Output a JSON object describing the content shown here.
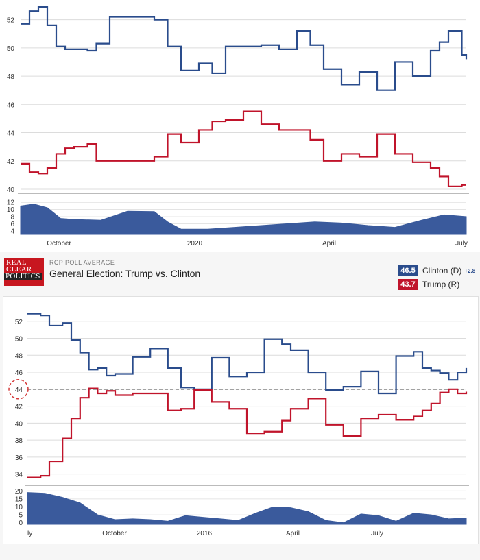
{
  "colors": {
    "clinton_or_dem": "#2a4c8c",
    "trump_or_rep": "#c0142b",
    "spread_fill": "#3a5a9c",
    "grid": "#dcdcdc"
  },
  "chart_data": [
    {
      "type": "line",
      "title": "",
      "x_ticks": [
        "October",
        "2020",
        "April",
        "July"
      ],
      "ylim": [
        40,
        53
      ],
      "y_ticks": [
        40,
        42,
        44,
        46,
        48,
        50,
        52
      ],
      "grid": true,
      "series": [
        {
          "name": "",
          "color": "#2a4c8c",
          "x": [
            0,
            2,
            4,
            6,
            8,
            10,
            12,
            15,
            17,
            20,
            25,
            30,
            33,
            36,
            40,
            43,
            46,
            50,
            54,
            58,
            62,
            65,
            68,
            72,
            76,
            80,
            84,
            88,
            92,
            94,
            96,
            99,
            100
          ],
          "y": [
            51.7,
            52.6,
            52.9,
            51.6,
            50.1,
            49.9,
            49.9,
            49.8,
            50.3,
            52.2,
            52.2,
            52.0,
            50.1,
            48.4,
            48.9,
            48.2,
            50.1,
            50.1,
            50.2,
            49.9,
            51.2,
            50.2,
            48.5,
            47.4,
            48.3,
            47.0,
            49.0,
            48.0,
            49.8,
            50.4,
            51.2,
            49.5,
            49.2
          ]
        },
        {
          "name": "",
          "color": "#c0142b",
          "x": [
            0,
            2,
            4,
            6,
            8,
            10,
            12,
            15,
            17,
            20,
            25,
            30,
            33,
            36,
            40,
            43,
            46,
            50,
            54,
            58,
            62,
            65,
            68,
            72,
            76,
            80,
            84,
            88,
            92,
            94,
            96,
            99,
            100
          ],
          "y": [
            41.8,
            41.2,
            41.1,
            41.5,
            42.5,
            42.9,
            43.0,
            43.2,
            42.0,
            42.0,
            42.0,
            42.3,
            43.9,
            43.3,
            44.2,
            44.8,
            44.9,
            45.5,
            44.6,
            44.2,
            44.2,
            43.5,
            42.0,
            42.5,
            42.3,
            43.9,
            42.5,
            41.9,
            41.5,
            40.9,
            40.2,
            40.3,
            40.3
          ]
        }
      ],
      "sub_panel": {
        "type": "area",
        "y_ticks": [
          4,
          6,
          8,
          10,
          12
        ],
        "ylim": [
          3,
          13
        ],
        "x": [
          0,
          3,
          6,
          9,
          12,
          18,
          24,
          30,
          33,
          36,
          42,
          48,
          54,
          60,
          66,
          72,
          78,
          84,
          90,
          95,
          100
        ],
        "values": [
          11.0,
          11.5,
          10.5,
          7.5,
          7.2,
          7.0,
          9.5,
          9.4,
          6.5,
          4.5,
          4.5,
          5.0,
          5.5,
          6.0,
          6.5,
          6.2,
          5.5,
          5.0,
          7.0,
          8.5,
          8.0
        ]
      }
    },
    {
      "type": "line",
      "title": "General Election: Trump vs. Clinton",
      "subtitle": "RCP POLL AVERAGE",
      "x_ticks": [
        "ly",
        "October",
        "2016",
        "April",
        "July"
      ],
      "ylim": [
        33,
        54
      ],
      "y_ticks": [
        34,
        36,
        38,
        40,
        42,
        44,
        46,
        48,
        50,
        52
      ],
      "grid": true,
      "reference_line": 44,
      "reference_label": "44",
      "series": [
        {
          "name": "Clinton (D)",
          "value": "46.5",
          "spread": "+2.8",
          "color": "#2a4c8c",
          "x": [
            0,
            3,
            5,
            8,
            10,
            12,
            14,
            16,
            18,
            20,
            24,
            28,
            32,
            35,
            38,
            42,
            46,
            50,
            54,
            58,
            60,
            64,
            68,
            72,
            76,
            80,
            84,
            88,
            90,
            92,
            94,
            96,
            98,
            100
          ],
          "y": [
            52.9,
            52.7,
            51.5,
            51.8,
            49.8,
            48.3,
            46.3,
            46.5,
            45.6,
            45.8,
            47.8,
            48.8,
            46.5,
            44.2,
            44.0,
            47.7,
            45.5,
            46.0,
            49.9,
            49.3,
            48.6,
            46.0,
            43.9,
            44.3,
            46.1,
            43.5,
            47.9,
            48.4,
            46.5,
            46.2,
            45.9,
            45.1,
            46.0,
            46.5
          ]
        },
        {
          "name": "Trump (R)",
          "value": "43.7",
          "spread": "",
          "color": "#c0142b",
          "x": [
            0,
            3,
            5,
            8,
            10,
            12,
            14,
            16,
            18,
            20,
            24,
            28,
            32,
            35,
            38,
            42,
            46,
            50,
            54,
            58,
            60,
            64,
            68,
            72,
            76,
            80,
            84,
            88,
            90,
            92,
            94,
            96,
            98,
            100
          ],
          "y": [
            33.6,
            33.8,
            35.5,
            38.2,
            40.5,
            43.0,
            44.1,
            43.5,
            43.8,
            43.3,
            43.5,
            43.5,
            41.5,
            41.7,
            43.9,
            42.5,
            41.7,
            38.8,
            39.0,
            40.3,
            41.7,
            42.9,
            39.8,
            38.5,
            40.5,
            41.0,
            40.4,
            40.8,
            41.5,
            42.3,
            43.6,
            44.0,
            43.5,
            43.7
          ]
        }
      ],
      "sub_panel": {
        "type": "area",
        "y_ticks": [
          0,
          5,
          10,
          15,
          20
        ],
        "ylim": [
          -1,
          21
        ],
        "x": [
          0,
          4,
          8,
          12,
          16,
          20,
          24,
          28,
          32,
          36,
          40,
          44,
          48,
          52,
          56,
          60,
          64,
          68,
          72,
          76,
          80,
          84,
          88,
          92,
          96,
          100
        ],
        "values": [
          19.0,
          18.5,
          16.0,
          12.5,
          5.0,
          2.0,
          2.5,
          2.0,
          1.0,
          4.5,
          3.5,
          2.5,
          1.5,
          6.0,
          10.0,
          9.5,
          7.0,
          1.5,
          0.0,
          5.5,
          4.5,
          1.0,
          6.0,
          5.0,
          2.5,
          3.0
        ]
      }
    }
  ]
}
